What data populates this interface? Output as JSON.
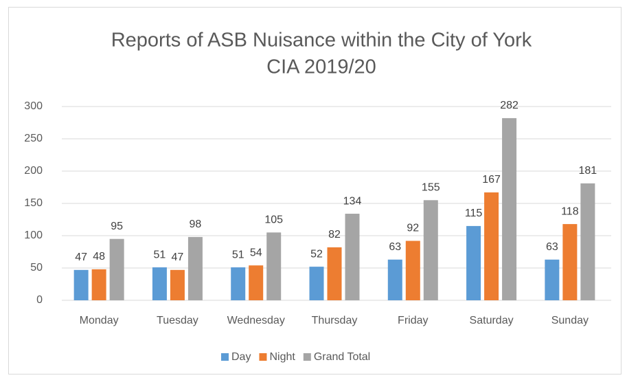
{
  "chart_data": {
    "type": "bar",
    "title": [
      "Reports of ASB Nuisance within the City of York",
      "CIA 2019/20"
    ],
    "categories": [
      "Monday",
      "Tuesday",
      "Wednesday",
      "Thursday",
      "Friday",
      "Saturday",
      "Sunday"
    ],
    "series": [
      {
        "name": "Day",
        "color": "#5b9bd5",
        "values": [
          47,
          51,
          51,
          52,
          63,
          115,
          63
        ]
      },
      {
        "name": "Night",
        "color": "#ed7d31",
        "values": [
          48,
          47,
          54,
          82,
          92,
          167,
          118
        ]
      },
      {
        "name": "Grand Total",
        "color": "#a5a5a5",
        "values": [
          95,
          98,
          105,
          134,
          155,
          282,
          181
        ]
      }
    ],
    "ylim": [
      0,
      300
    ],
    "yticks": [
      0,
      50,
      100,
      150,
      200,
      250,
      300
    ],
    "grid": true,
    "legend": "bottom"
  }
}
